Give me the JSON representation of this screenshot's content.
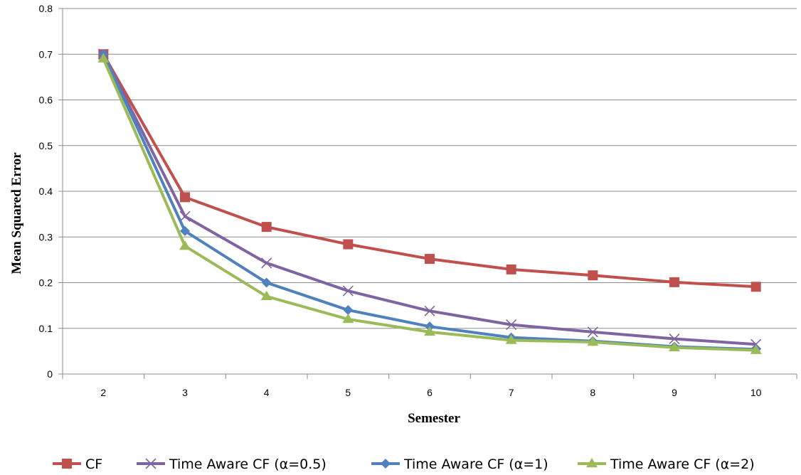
{
  "chart_data": {
    "type": "line",
    "title": "",
    "xlabel": "Semester",
    "ylabel": "Mean Squared Error",
    "categories": [
      "2",
      "3",
      "4",
      "5",
      "6",
      "7",
      "8",
      "9",
      "10"
    ],
    "ylim": [
      0,
      0.8
    ],
    "yticks": [
      "0",
      "0.1",
      "0.2",
      "0.3",
      "0.4",
      "0.5",
      "0.6",
      "0.7",
      "0.8"
    ],
    "grid": "horizontal",
    "legend_position": "bottom",
    "series": [
      {
        "name": "CF",
        "marker": "square",
        "color": "#c0504d",
        "values": [
          0.7,
          0.387,
          0.322,
          0.284,
          0.252,
          0.229,
          0.216,
          0.201,
          0.191
        ]
      },
      {
        "name": "Time Aware CF (α=0.5)",
        "marker": "x",
        "color": "#8064a2",
        "values": [
          0.7,
          0.345,
          0.243,
          0.182,
          0.138,
          0.108,
          0.092,
          0.077,
          0.065
        ]
      },
      {
        "name": "Time Aware CF (α=1)",
        "marker": "diamond",
        "color": "#4f81bd",
        "values": [
          0.7,
          0.313,
          0.2,
          0.14,
          0.104,
          0.08,
          0.072,
          0.06,
          0.054
        ]
      },
      {
        "name": "Time Aware CF (α=2)",
        "marker": "triangle",
        "color": "#9bbb59",
        "values": [
          0.69,
          0.28,
          0.17,
          0.12,
          0.092,
          0.074,
          0.07,
          0.058,
          0.052
        ]
      }
    ]
  }
}
